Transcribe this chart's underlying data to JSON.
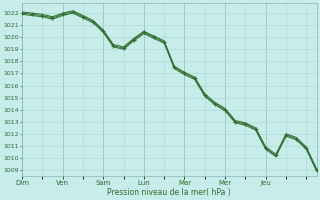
{
  "background_color": "#c8ece9",
  "grid_color": "#a8d8d2",
  "line_color": "#2d6e2d",
  "marker_color": "#2d6e2d",
  "ylabel_ticks": [
    1009,
    1010,
    1011,
    1012,
    1013,
    1014,
    1015,
    1016,
    1017,
    1018,
    1019,
    1020,
    1021,
    1022
  ],
  "ylim": [
    1008.5,
    1022.8
  ],
  "xlabel": "Pression niveau de la mer( hPa )",
  "day_labels": [
    "Dim",
    "Ven",
    "Sam",
    "Lun",
    "Mar",
    "Mer",
    "Jeu"
  ],
  "day_positions": [
    0,
    4,
    8,
    12,
    16,
    20,
    24
  ],
  "series_main": [
    1022.0,
    1021.9,
    1021.8,
    1021.6,
    1021.9,
    1022.1,
    1021.7,
    1021.3,
    1020.5,
    1019.3,
    1019.1,
    1019.8,
    1020.4,
    1020.0,
    1019.6,
    1017.5,
    1017.0,
    1016.6,
    1015.2,
    1014.5,
    1014.0,
    1013.0,
    1012.8,
    1012.4,
    1010.8,
    1010.2,
    1011.9,
    1011.6,
    1010.8,
    1009.0
  ],
  "series_upper": [
    1022.1,
    1022.0,
    1021.9,
    1021.7,
    1022.0,
    1022.2,
    1021.8,
    1021.4,
    1020.6,
    1019.4,
    1019.2,
    1019.9,
    1020.5,
    1020.1,
    1019.7,
    1017.6,
    1017.1,
    1016.7,
    1015.3,
    1014.6,
    1014.1,
    1013.1,
    1012.9,
    1012.5,
    1010.9,
    1010.3,
    1012.0,
    1011.7,
    1010.9,
    1009.1
  ],
  "series_lower": [
    1021.9,
    1021.8,
    1021.7,
    1021.5,
    1021.8,
    1022.0,
    1021.6,
    1021.2,
    1020.4,
    1019.2,
    1019.0,
    1019.7,
    1020.3,
    1019.9,
    1019.5,
    1017.4,
    1016.9,
    1016.5,
    1015.1,
    1014.4,
    1013.9,
    1012.9,
    1012.7,
    1012.3,
    1010.7,
    1010.1,
    1011.8,
    1011.5,
    1010.7,
    1008.9
  ]
}
